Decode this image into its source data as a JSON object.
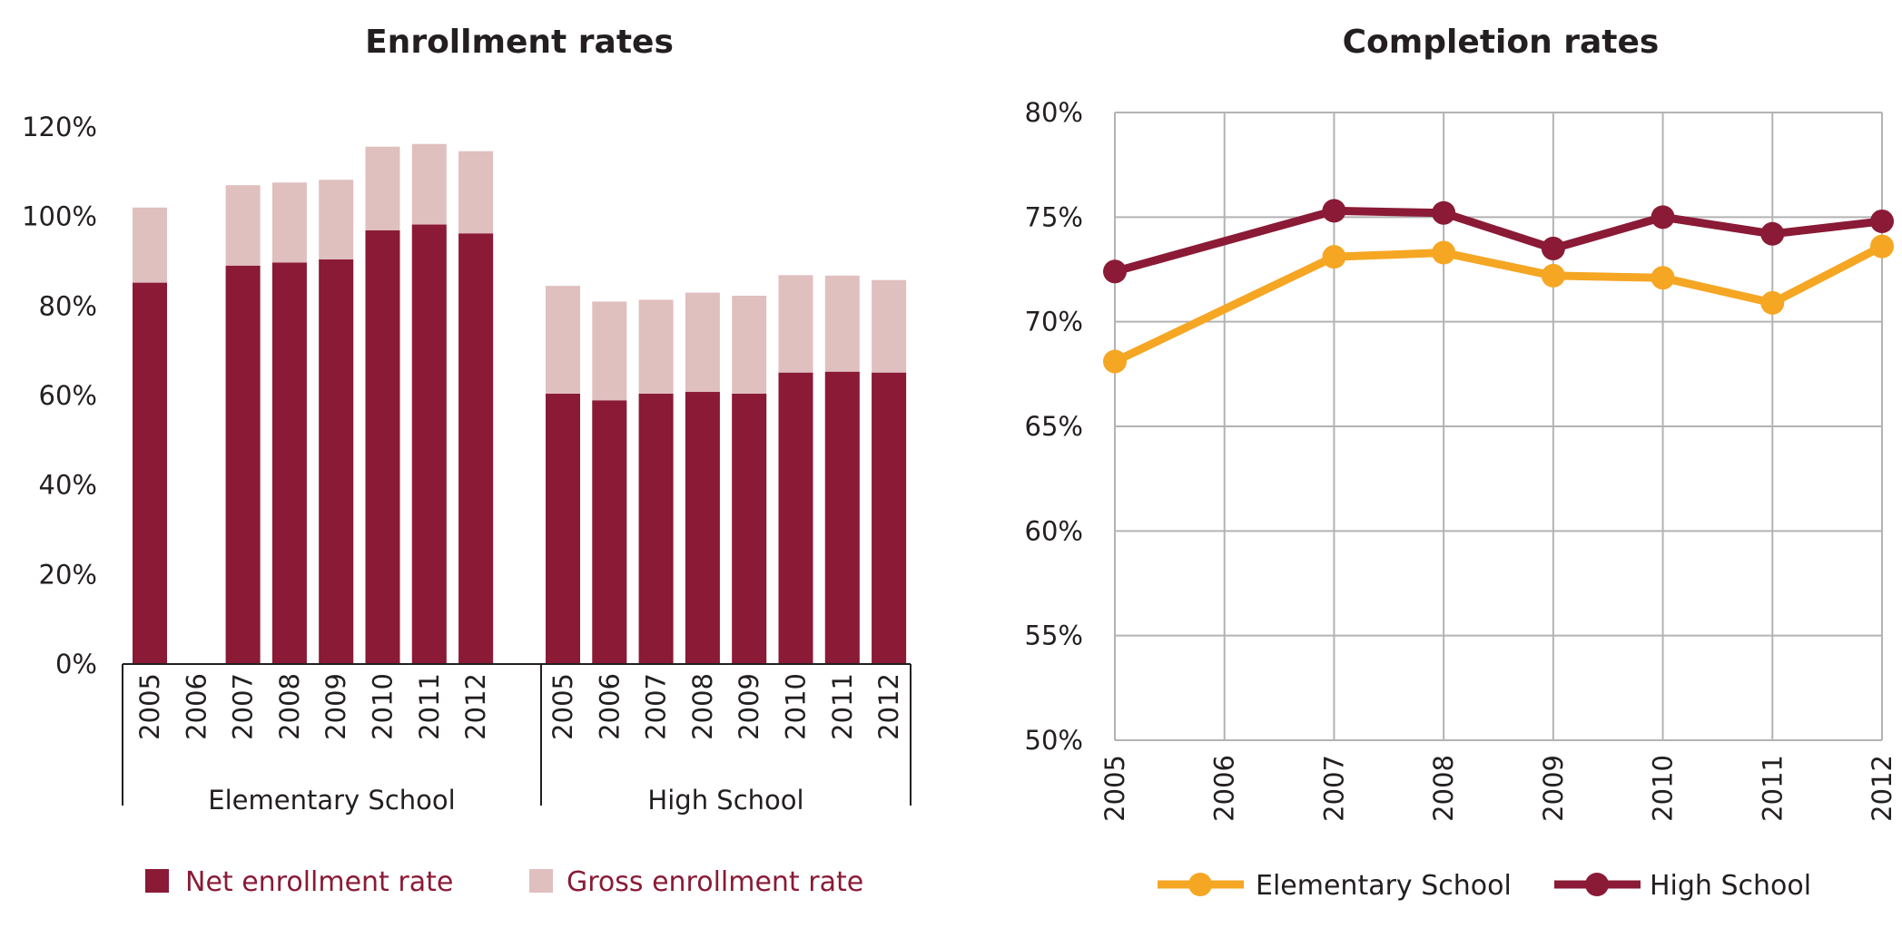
{
  "chart_data": [
    {
      "type": "bar",
      "stacking": "overlay",
      "title": "Enrollment rates",
      "groups": [
        "Elementary School",
        "High School"
      ],
      "categories": [
        "2005",
        "2006",
        "2007",
        "2008",
        "2009",
        "2010",
        "2011",
        "2012"
      ],
      "ylim": [
        0,
        120
      ],
      "yticks": [
        "0%",
        "20%",
        "40%",
        "60%",
        "80%",
        "100%",
        "120%"
      ],
      "grid": false,
      "legend_position": "bottom",
      "series": [
        {
          "name": "Net enrollment rate",
          "color": "#8a1a36",
          "values": {
            "Elementary School": [
              85.2,
              null,
              89.0,
              89.7,
              90.4,
              96.9,
              98.2,
              96.2
            ],
            "High School": [
              60.4,
              58.9,
              60.4,
              60.8,
              60.4,
              65.1,
              65.3,
              65.1
            ]
          }
        },
        {
          "name": "Gross enrollment rate",
          "color": "#e0bfbf",
          "values": {
            "Elementary School": [
              102.0,
              null,
              107.0,
              107.6,
              108.2,
              115.6,
              116.2,
              114.6
            ],
            "High School": [
              84.5,
              81.0,
              81.4,
              83.0,
              82.3,
              86.9,
              86.8,
              85.8
            ]
          }
        }
      ]
    },
    {
      "type": "line",
      "title": "Completion rates",
      "categories": [
        "2005",
        "2006",
        "2007",
        "2008",
        "2009",
        "2010",
        "2011",
        "2012"
      ],
      "ylim": [
        50,
        80
      ],
      "yticks": [
        "50%",
        "55%",
        "60%",
        "65%",
        "70%",
        "75%",
        "80%"
      ],
      "grid": true,
      "legend_position": "bottom",
      "series": [
        {
          "name": "Elementary School",
          "color": "#f5a623",
          "values": [
            68.1,
            null,
            73.1,
            73.3,
            72.2,
            72.1,
            70.9,
            73.6
          ]
        },
        {
          "name": "High School",
          "color": "#8a1a36",
          "values": [
            72.4,
            null,
            75.3,
            75.2,
            73.5,
            75.0,
            74.2,
            74.8
          ]
        }
      ]
    }
  ]
}
